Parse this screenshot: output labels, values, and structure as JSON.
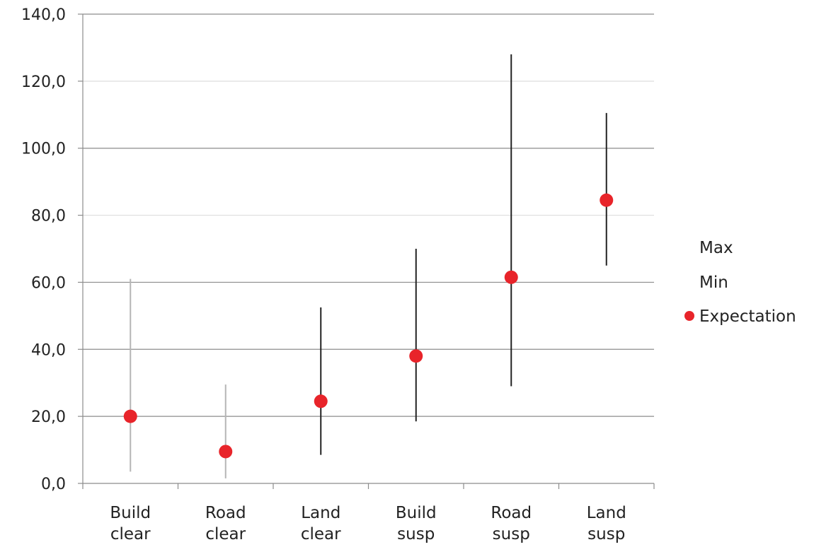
{
  "chart_data": {
    "type": "scatter",
    "categories": [
      [
        "Build",
        "clear"
      ],
      [
        "Road",
        "clear"
      ],
      [
        "Land",
        "clear"
      ],
      [
        "Build",
        "susp"
      ],
      [
        "Road",
        "susp"
      ],
      [
        "Land",
        "susp"
      ]
    ],
    "series": [
      {
        "name": "Max",
        "values": [
          61.0,
          29.5,
          52.5,
          70.0,
          128.0,
          110.5
        ]
      },
      {
        "name": "Min",
        "values": [
          3.5,
          1.5,
          8.5,
          18.5,
          29.0,
          65.0
        ]
      },
      {
        "name": "Expectation",
        "values": [
          20.0,
          9.5,
          24.5,
          38.0,
          61.5,
          84.5
        ]
      }
    ],
    "ylim": [
      0,
      140
    ],
    "yticks": [
      "0,0",
      "20,0",
      "40,0",
      "60,0",
      "80,0",
      "100,0",
      "120,0",
      "140,0"
    ],
    "grid": true,
    "legend_position": "right",
    "colors": {
      "expectation": "#e8242a",
      "range_line_light": "#b5b5b5",
      "range_line_dark": "#222222",
      "grid": "#8c8c8c",
      "grid_light": "#dddddd",
      "axis": "#8c8c8c"
    }
  }
}
